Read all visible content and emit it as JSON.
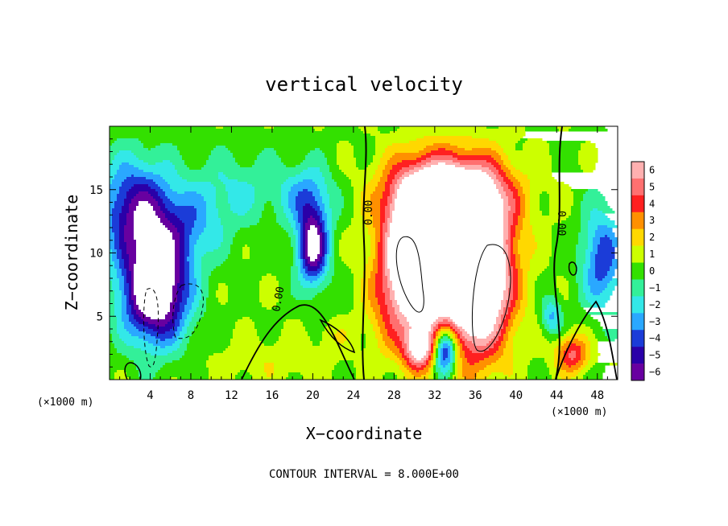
{
  "chart_data": {
    "type": "heatmap",
    "title": "vertical velocity",
    "xlabel": "X−coordinate",
    "ylabel": "Z−coordinate",
    "x_unit_left": "(×1000 m)",
    "x_unit_right": "(×1000 m)",
    "footer": "CONTOUR INTERVAL = 8.000E+00",
    "xlim": [
      0,
      50
    ],
    "ylim": [
      0,
      20
    ],
    "x_ticks": [
      4,
      8,
      12,
      16,
      20,
      24,
      28,
      32,
      36,
      40,
      44,
      48
    ],
    "x_tick_labels": [
      "4",
      "8",
      "12",
      "16",
      "20",
      "24",
      "28",
      "32",
      "36",
      "40",
      "44",
      "48"
    ],
    "y_ticks": [
      5,
      10,
      15
    ],
    "y_tick_labels": [
      "5",
      "10",
      "15"
    ],
    "colorbar": {
      "range": [
        -6,
        6
      ],
      "labels": [
        "6",
        "5",
        "4",
        "3",
        "2",
        "1",
        "0",
        "−1",
        "−2",
        "−3",
        "−4",
        "−5",
        "−6"
      ],
      "colors": [
        "#ffb0b0",
        "#ff7070",
        "#ff2020",
        "#ff9000",
        "#ffd800",
        "#ccff00",
        "#33e000",
        "#33f099",
        "#33e8e8",
        "#2aa8ff",
        "#1b3cd8",
        "#2a00a8",
        "#6800a0"
      ]
    },
    "contour_labels": [
      {
        "text": "0.00",
        "x": 25.3,
        "y": 13
      },
      {
        "text": "0.00",
        "x": 43.5,
        "y": 11.2
      },
      {
        "text": "0.00",
        "x": 16.5,
        "y": 6.4
      }
    ],
    "features": [
      {
        "kind": "downdraft",
        "x": 4.5,
        "y": 6.5,
        "peak": -9
      },
      {
        "kind": "downdraft",
        "x": 20.0,
        "y": 10.5,
        "peak": -7
      },
      {
        "kind": "updraft",
        "x": 30.5,
        "y": 9.5,
        "peak": 14
      },
      {
        "kind": "updraft",
        "x": 36.0,
        "y": 8.5,
        "peak": 14
      },
      {
        "kind": "updraft",
        "x": 45.5,
        "y": 2.0,
        "peak": 4
      }
    ]
  }
}
